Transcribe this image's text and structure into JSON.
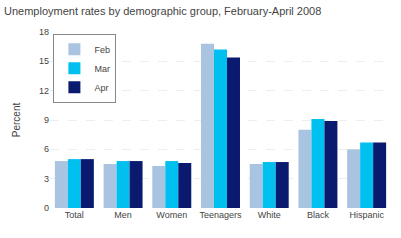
{
  "chart_data": {
    "type": "bar",
    "title": "Unemployment rates by demographic group, February-April 2008",
    "categories": [
      "Total",
      "Men",
      "Women",
      "Teenagers",
      "White",
      "Black",
      "Hispanic"
    ],
    "series": [
      {
        "name": "Feb",
        "color": "#a8c4e0",
        "values": [
          4.8,
          4.5,
          4.3,
          16.8,
          4.5,
          8.0,
          6.0
        ]
      },
      {
        "name": "Mar",
        "color": "#00c0f0",
        "values": [
          5.0,
          4.8,
          4.8,
          16.2,
          4.7,
          9.1,
          6.7
        ]
      },
      {
        "name": "Apr",
        "color": "#0a1a6e",
        "values": [
          5.0,
          4.8,
          4.6,
          15.4,
          4.7,
          8.9,
          6.7
        ]
      }
    ],
    "ylabel": "Percent",
    "ylim": [
      0,
      18
    ],
    "yticks": [
      0,
      3,
      6,
      9,
      12,
      15,
      18
    ],
    "grid": true,
    "legend": "upper left"
  }
}
